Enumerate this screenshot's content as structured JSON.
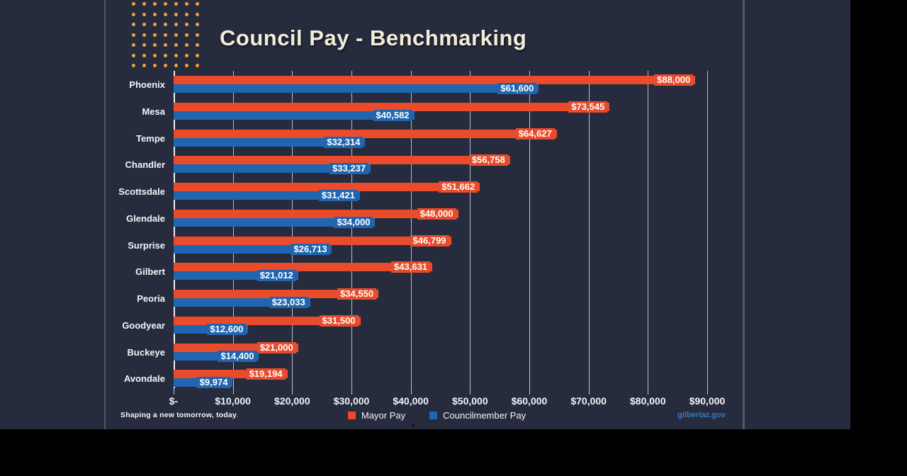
{
  "slide": {
    "title": "Council Pay - Benchmarking",
    "tagline": "Shaping a new tomorrow, today",
    "tagline_period": ".",
    "site_link": "gilbertaz.gov"
  },
  "legend": {
    "mayor_label": "Mayor Pay",
    "council_label": "Councilmember Pay"
  },
  "colors": {
    "background": "#262C3E",
    "mayor": "#E94B2B",
    "council": "#1F65AF",
    "accent_dots": "#F1A33C",
    "title_text": "#F2ECD8",
    "gridline": "#D2D8E4",
    "link": "#3D78BE"
  },
  "decor": {
    "dot_grid": {
      "rows": 7,
      "cols": 7,
      "color": "#F1A33C"
    }
  },
  "chart_data": {
    "type": "bar",
    "orientation": "horizontal",
    "title": "Council Pay - Benchmarking",
    "categories": [
      "Phoenix",
      "Mesa",
      "Tempe",
      "Chandler",
      "Scottsdale",
      "Glendale",
      "Surprise",
      "Gilbert",
      "Peoria",
      "Goodyear",
      "Buckeye",
      "Avondale"
    ],
    "series": [
      {
        "name": "Mayor Pay",
        "color": "#E94B2B",
        "values": [
          88000,
          73545,
          64627,
          56758,
          51662,
          48000,
          46799,
          43631,
          34550,
          31500,
          21000,
          19194
        ],
        "labels": [
          "$88,000",
          "$73,545",
          "$64,627",
          "$56,758",
          "$51,662",
          "$48,000",
          "$46,799",
          "$43,631",
          "$34,550",
          "$31,500",
          "$21,000",
          "$19,194"
        ]
      },
      {
        "name": "Councilmember Pay",
        "color": "#1F65AF",
        "values": [
          61600,
          40582,
          32314,
          33237,
          31421,
          34000,
          26713,
          21012,
          23033,
          12600,
          14400,
          9974
        ],
        "labels": [
          "$61,600",
          "$40,582",
          "$32,314",
          "$33,237",
          "$31,421",
          "$34,000",
          "$26,713",
          "$21,012",
          "$23,033",
          "$12,600",
          "$14,400",
          "$9,974"
        ]
      }
    ],
    "x_axis": {
      "min": 0,
      "max": 90000,
      "tick_step": 10000,
      "ticks": [
        "$-",
        "$10,000",
        "$20,000",
        "$30,000",
        "$40,000",
        "$50,000",
        "$60,000",
        "$70,000",
        "$80,000",
        "$90,000"
      ],
      "gridlines": true
    },
    "data_labels": "inside-end",
    "legend_position": "bottom"
  }
}
